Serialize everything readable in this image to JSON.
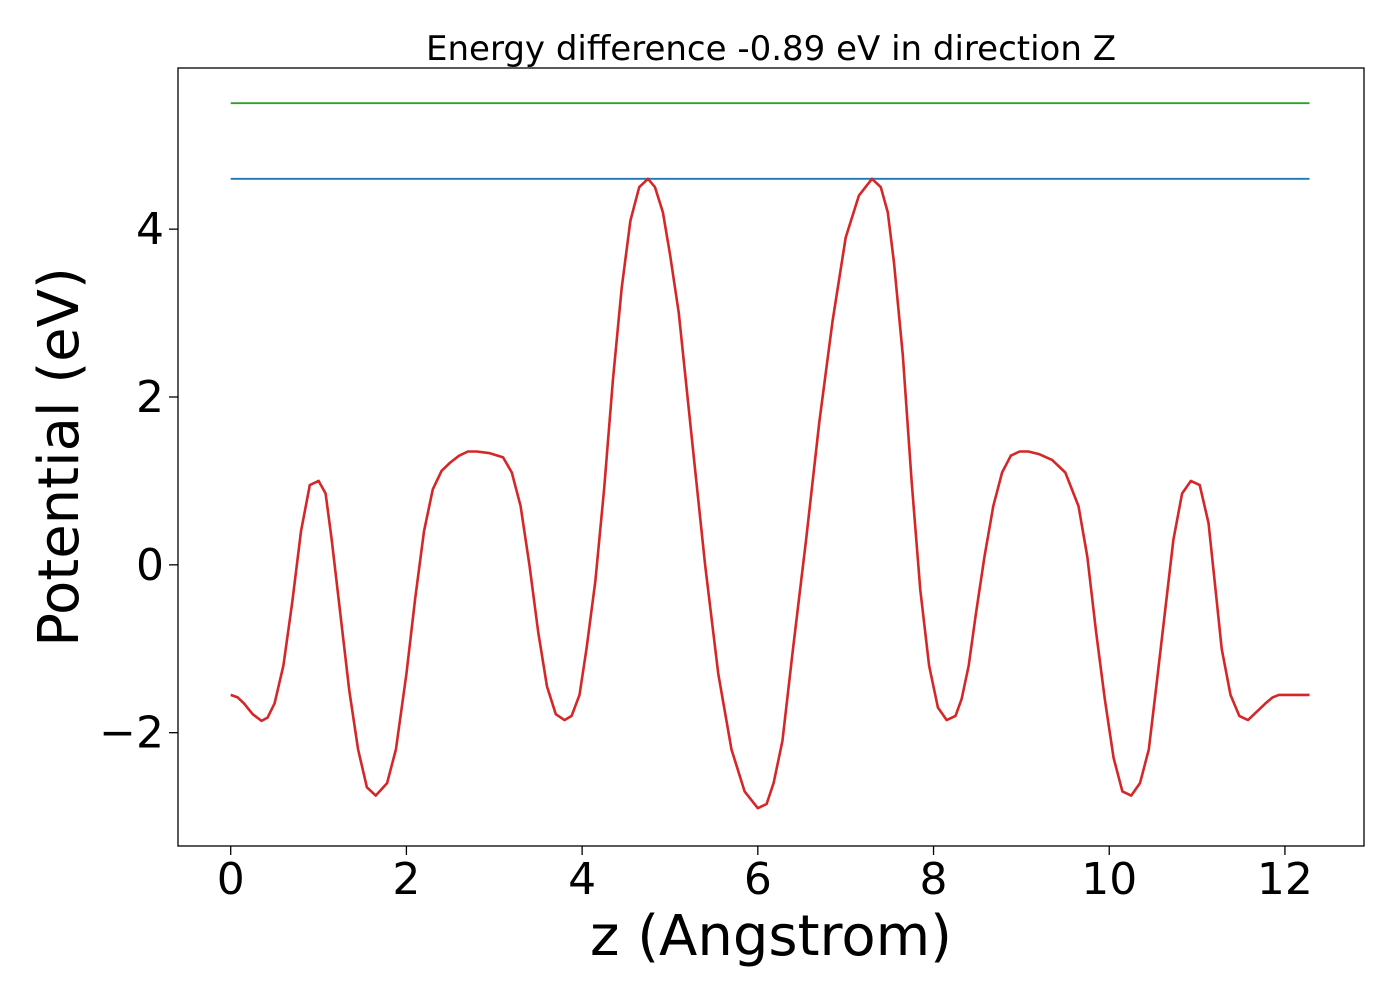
{
  "chart_data": {
    "type": "line",
    "title": "Energy difference -0.89 eV in direction Z",
    "xlabel": "z (Angstrom)",
    "ylabel": "Potential (eV)",
    "xlim": [
      -0.6,
      12.9
    ],
    "ylim": [
      -3.35,
      5.92
    ],
    "xticks": [
      0,
      2,
      4,
      6,
      8,
      10,
      12
    ],
    "xtick_labels": [
      "0",
      "2",
      "4",
      "6",
      "8",
      "10",
      "12"
    ],
    "yticks": [
      -2,
      0,
      2,
      4
    ],
    "ytick_labels": [
      "−2",
      "0",
      "2",
      "4"
    ],
    "grid": false,
    "legend": "none",
    "series": [
      {
        "color": "#2ca02c",
        "x": [
          0,
          12.28
        ],
        "y": [
          5.5,
          5.5
        ]
      },
      {
        "color": "#1f77b4",
        "x": [
          0,
          12.28
        ],
        "y": [
          4.6,
          4.6
        ]
      },
      {
        "color": "#d62728",
        "x": [
          0.0,
          0.08,
          0.15,
          0.25,
          0.35,
          0.42,
          0.5,
          0.6,
          0.7,
          0.8,
          0.9,
          1.0,
          1.08,
          1.15,
          1.25,
          1.35,
          1.45,
          1.55,
          1.65,
          1.78,
          1.88,
          2.0,
          2.1,
          2.2,
          2.3,
          2.4,
          2.5,
          2.6,
          2.7,
          2.8,
          2.95,
          3.1,
          3.2,
          3.3,
          3.4,
          3.5,
          3.6,
          3.7,
          3.8,
          3.88,
          3.97,
          4.05,
          4.15,
          4.25,
          4.35,
          4.45,
          4.55,
          4.65,
          4.75,
          4.83,
          4.92,
          5.0,
          5.1,
          5.25,
          5.4,
          5.55,
          5.7,
          5.85,
          6.0,
          6.1,
          6.18,
          6.28,
          6.4,
          6.55,
          6.7,
          6.85,
          7.0,
          7.15,
          7.3,
          7.4,
          7.48,
          7.55,
          7.65,
          7.75,
          7.85,
          7.95,
          8.05,
          8.15,
          8.25,
          8.32,
          8.4,
          8.48,
          8.58,
          8.68,
          8.78,
          8.88,
          8.98,
          9.08,
          9.2,
          9.35,
          9.5,
          9.65,
          9.75,
          9.85,
          9.95,
          10.05,
          10.15,
          10.25,
          10.35,
          10.45,
          10.53,
          10.63,
          10.73,
          10.83,
          10.93,
          11.03,
          11.13,
          11.2,
          11.28,
          11.38,
          11.48,
          11.58,
          11.68,
          11.78,
          11.86,
          11.93,
          12.03,
          12.13,
          12.23,
          12.28
        ],
        "y": [
          -1.55,
          -1.58,
          -1.65,
          -1.78,
          -1.86,
          -1.82,
          -1.65,
          -1.2,
          -0.45,
          0.4,
          0.95,
          1.0,
          0.85,
          0.3,
          -0.6,
          -1.5,
          -2.2,
          -2.65,
          -2.75,
          -2.6,
          -2.2,
          -1.3,
          -0.4,
          0.4,
          0.9,
          1.12,
          1.22,
          1.3,
          1.35,
          1.35,
          1.33,
          1.28,
          1.1,
          0.7,
          0.0,
          -0.8,
          -1.45,
          -1.78,
          -1.85,
          -1.8,
          -1.55,
          -1.0,
          -0.2,
          0.9,
          2.2,
          3.3,
          4.1,
          4.5,
          4.6,
          4.5,
          4.2,
          3.7,
          3.0,
          1.5,
          0.0,
          -1.3,
          -2.2,
          -2.7,
          -2.9,
          -2.85,
          -2.6,
          -2.1,
          -1.0,
          0.3,
          1.7,
          2.9,
          3.9,
          4.4,
          4.6,
          4.5,
          4.2,
          3.6,
          2.5,
          1.0,
          -0.3,
          -1.2,
          -1.7,
          -1.85,
          -1.8,
          -1.6,
          -1.2,
          -0.6,
          0.1,
          0.7,
          1.1,
          1.3,
          1.35,
          1.35,
          1.32,
          1.25,
          1.1,
          0.7,
          0.1,
          -0.8,
          -1.6,
          -2.3,
          -2.7,
          -2.75,
          -2.6,
          -2.2,
          -1.5,
          -0.6,
          0.3,
          0.85,
          1.0,
          0.95,
          0.5,
          -0.2,
          -1.0,
          -1.55,
          -1.8,
          -1.85,
          -1.75,
          -1.65,
          -1.58,
          -1.55,
          -1.55,
          -1.55,
          -1.55,
          -1.55
        ]
      }
    ]
  }
}
